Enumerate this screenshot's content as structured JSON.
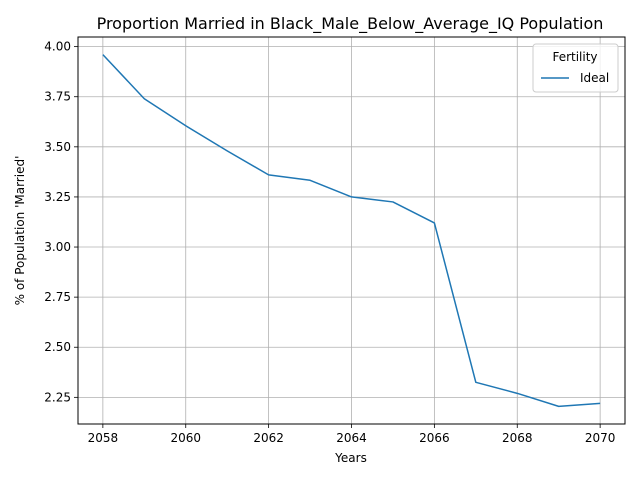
{
  "chart_data": {
    "type": "line",
    "title": "Proportion Married in Black_Male_Below_Average_IQ Population",
    "xlabel": "Years",
    "ylabel": "% of Population 'Married'",
    "x": [
      2058,
      2059,
      2060,
      2061,
      2062,
      2063,
      2064,
      2065,
      2066,
      2067,
      2068,
      2069,
      2070
    ],
    "series": [
      {
        "name": "Ideal",
        "color": "#1f77b4",
        "values": [
          3.96,
          3.74,
          3.605,
          3.48,
          3.36,
          3.333,
          3.25,
          3.225,
          3.12,
          2.325,
          2.27,
          2.205,
          2.22
        ]
      }
    ],
    "xlim": [
      2057.4,
      2070.6
    ],
    "ylim": [
      2.117,
      4.048
    ],
    "xticks": [
      2058,
      2060,
      2062,
      2064,
      2066,
      2068,
      2070
    ],
    "yticks": [
      "2.25",
      "2.50",
      "2.75",
      "3.00",
      "3.25",
      "3.50",
      "3.75",
      "4.00"
    ],
    "grid": true,
    "legend": {
      "title": "Fertility",
      "position": "top-right"
    }
  }
}
